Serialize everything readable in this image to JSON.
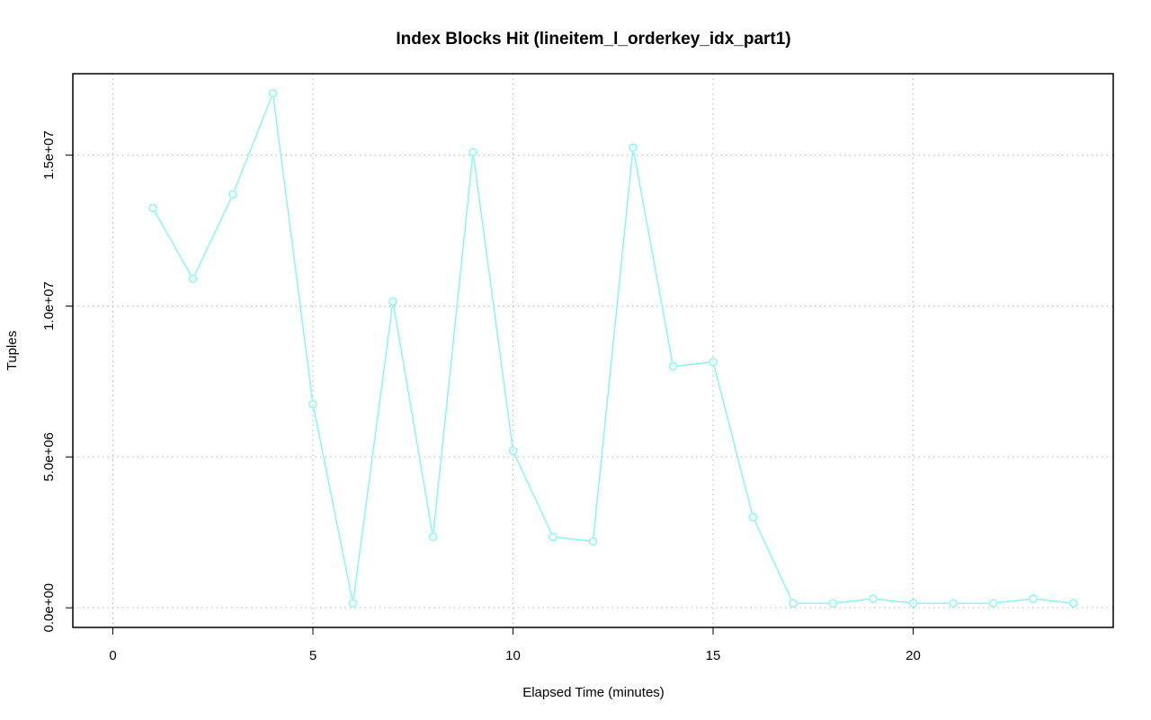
{
  "colors": {
    "series": "#7ff7f7",
    "grid": "#c0c0c0",
    "frame": "#000000",
    "text": "#000000",
    "background": "#ffffff"
  },
  "chart_data": {
    "type": "line",
    "title": "Index Blocks Hit (lineitem_l_orderkey_idx_part1)",
    "xlabel": "Elapsed Time (minutes)",
    "ylabel": "Tuples",
    "xlim": [
      -1,
      25
    ],
    "ylim": [
      -650000,
      17700000
    ],
    "x_ticks": [
      0,
      5,
      10,
      15,
      20
    ],
    "x_tick_labels": [
      "0",
      "5",
      "10",
      "15",
      "20"
    ],
    "y_ticks": [
      0,
      5000000,
      10000000,
      15000000
    ],
    "y_tick_labels": [
      "0.0e+00",
      "5.0e+06",
      "1.0e+07",
      "1.5e+07"
    ],
    "grid": true,
    "marker": "open-circle",
    "series": [
      {
        "x": [
          1,
          2,
          3,
          4,
          5,
          6,
          7,
          8,
          9,
          10,
          11,
          12,
          13,
          14,
          15,
          16,
          17,
          18,
          19,
          20,
          21,
          22,
          23,
          24
        ],
        "values": [
          13250000,
          10900000,
          13700000,
          17050000,
          6750000,
          150000,
          10150000,
          2350000,
          15100000,
          5200000,
          2350000,
          2200000,
          15250000,
          8000000,
          8150000,
          3000000,
          150000,
          150000,
          300000,
          150000,
          150000,
          150000,
          300000,
          150000
        ]
      }
    ]
  }
}
